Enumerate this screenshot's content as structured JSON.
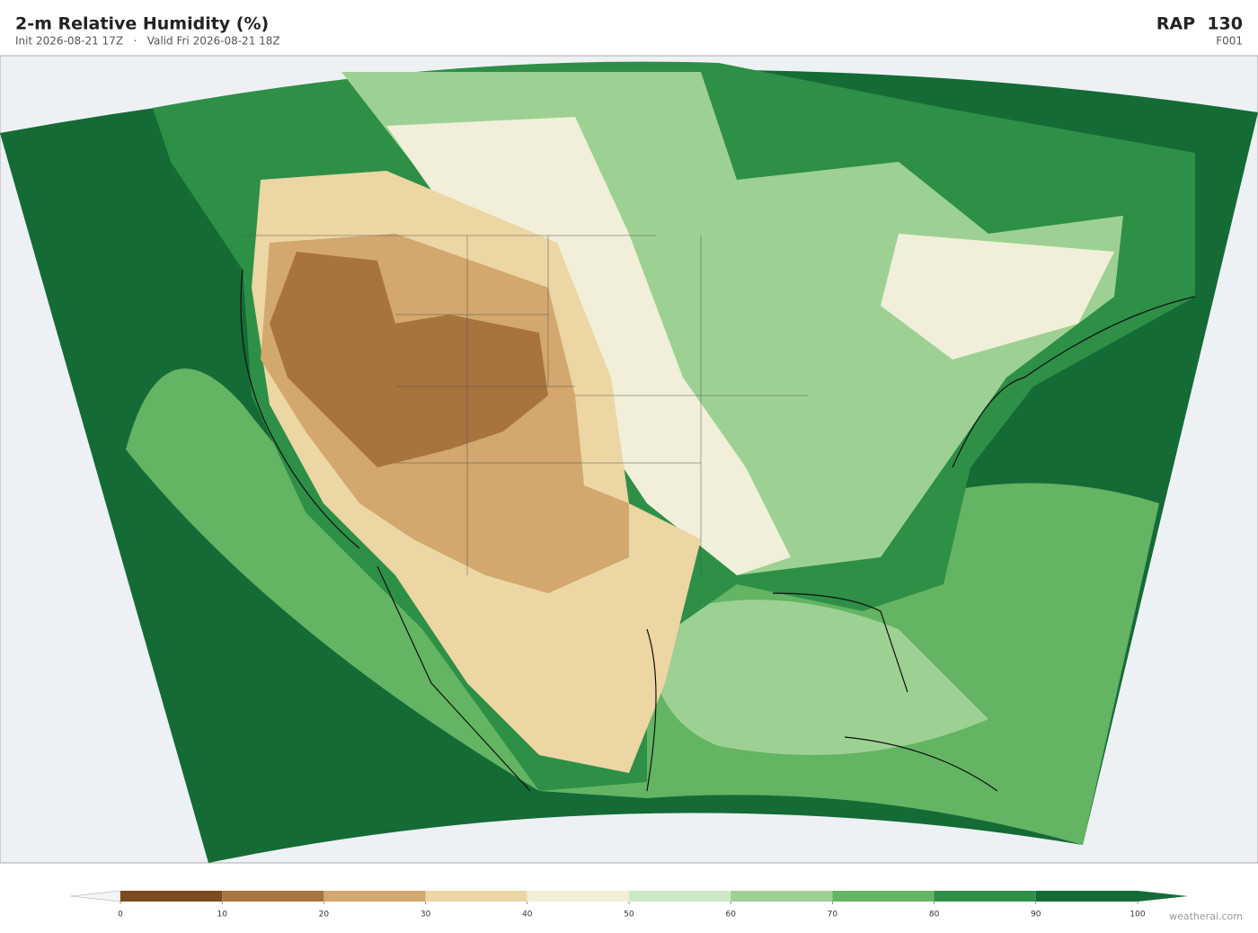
{
  "header": {
    "title": "2-m Relative Humidity  (%)",
    "subtitle": "Init 2026-08-21 17Z   ·   Valid Fri 2026-08-21 18Z",
    "model": "RAP  130",
    "forecast_hour": "F001"
  },
  "colorbar": {
    "levels": [
      0,
      10,
      20,
      30,
      40,
      50,
      60,
      70,
      80,
      90,
      100
    ],
    "colors": [
      "#7b4a1f",
      "#a8743e",
      "#d2a86e",
      "#ecd6a4",
      "#f1efd9",
      "#cde8c5",
      "#9dd193",
      "#63b463",
      "#2e8f47",
      "#146b35"
    ],
    "under_color": "#f4f4f4",
    "over_color": "#146b35"
  },
  "footer": {
    "credit": "weatherai.com"
  }
}
